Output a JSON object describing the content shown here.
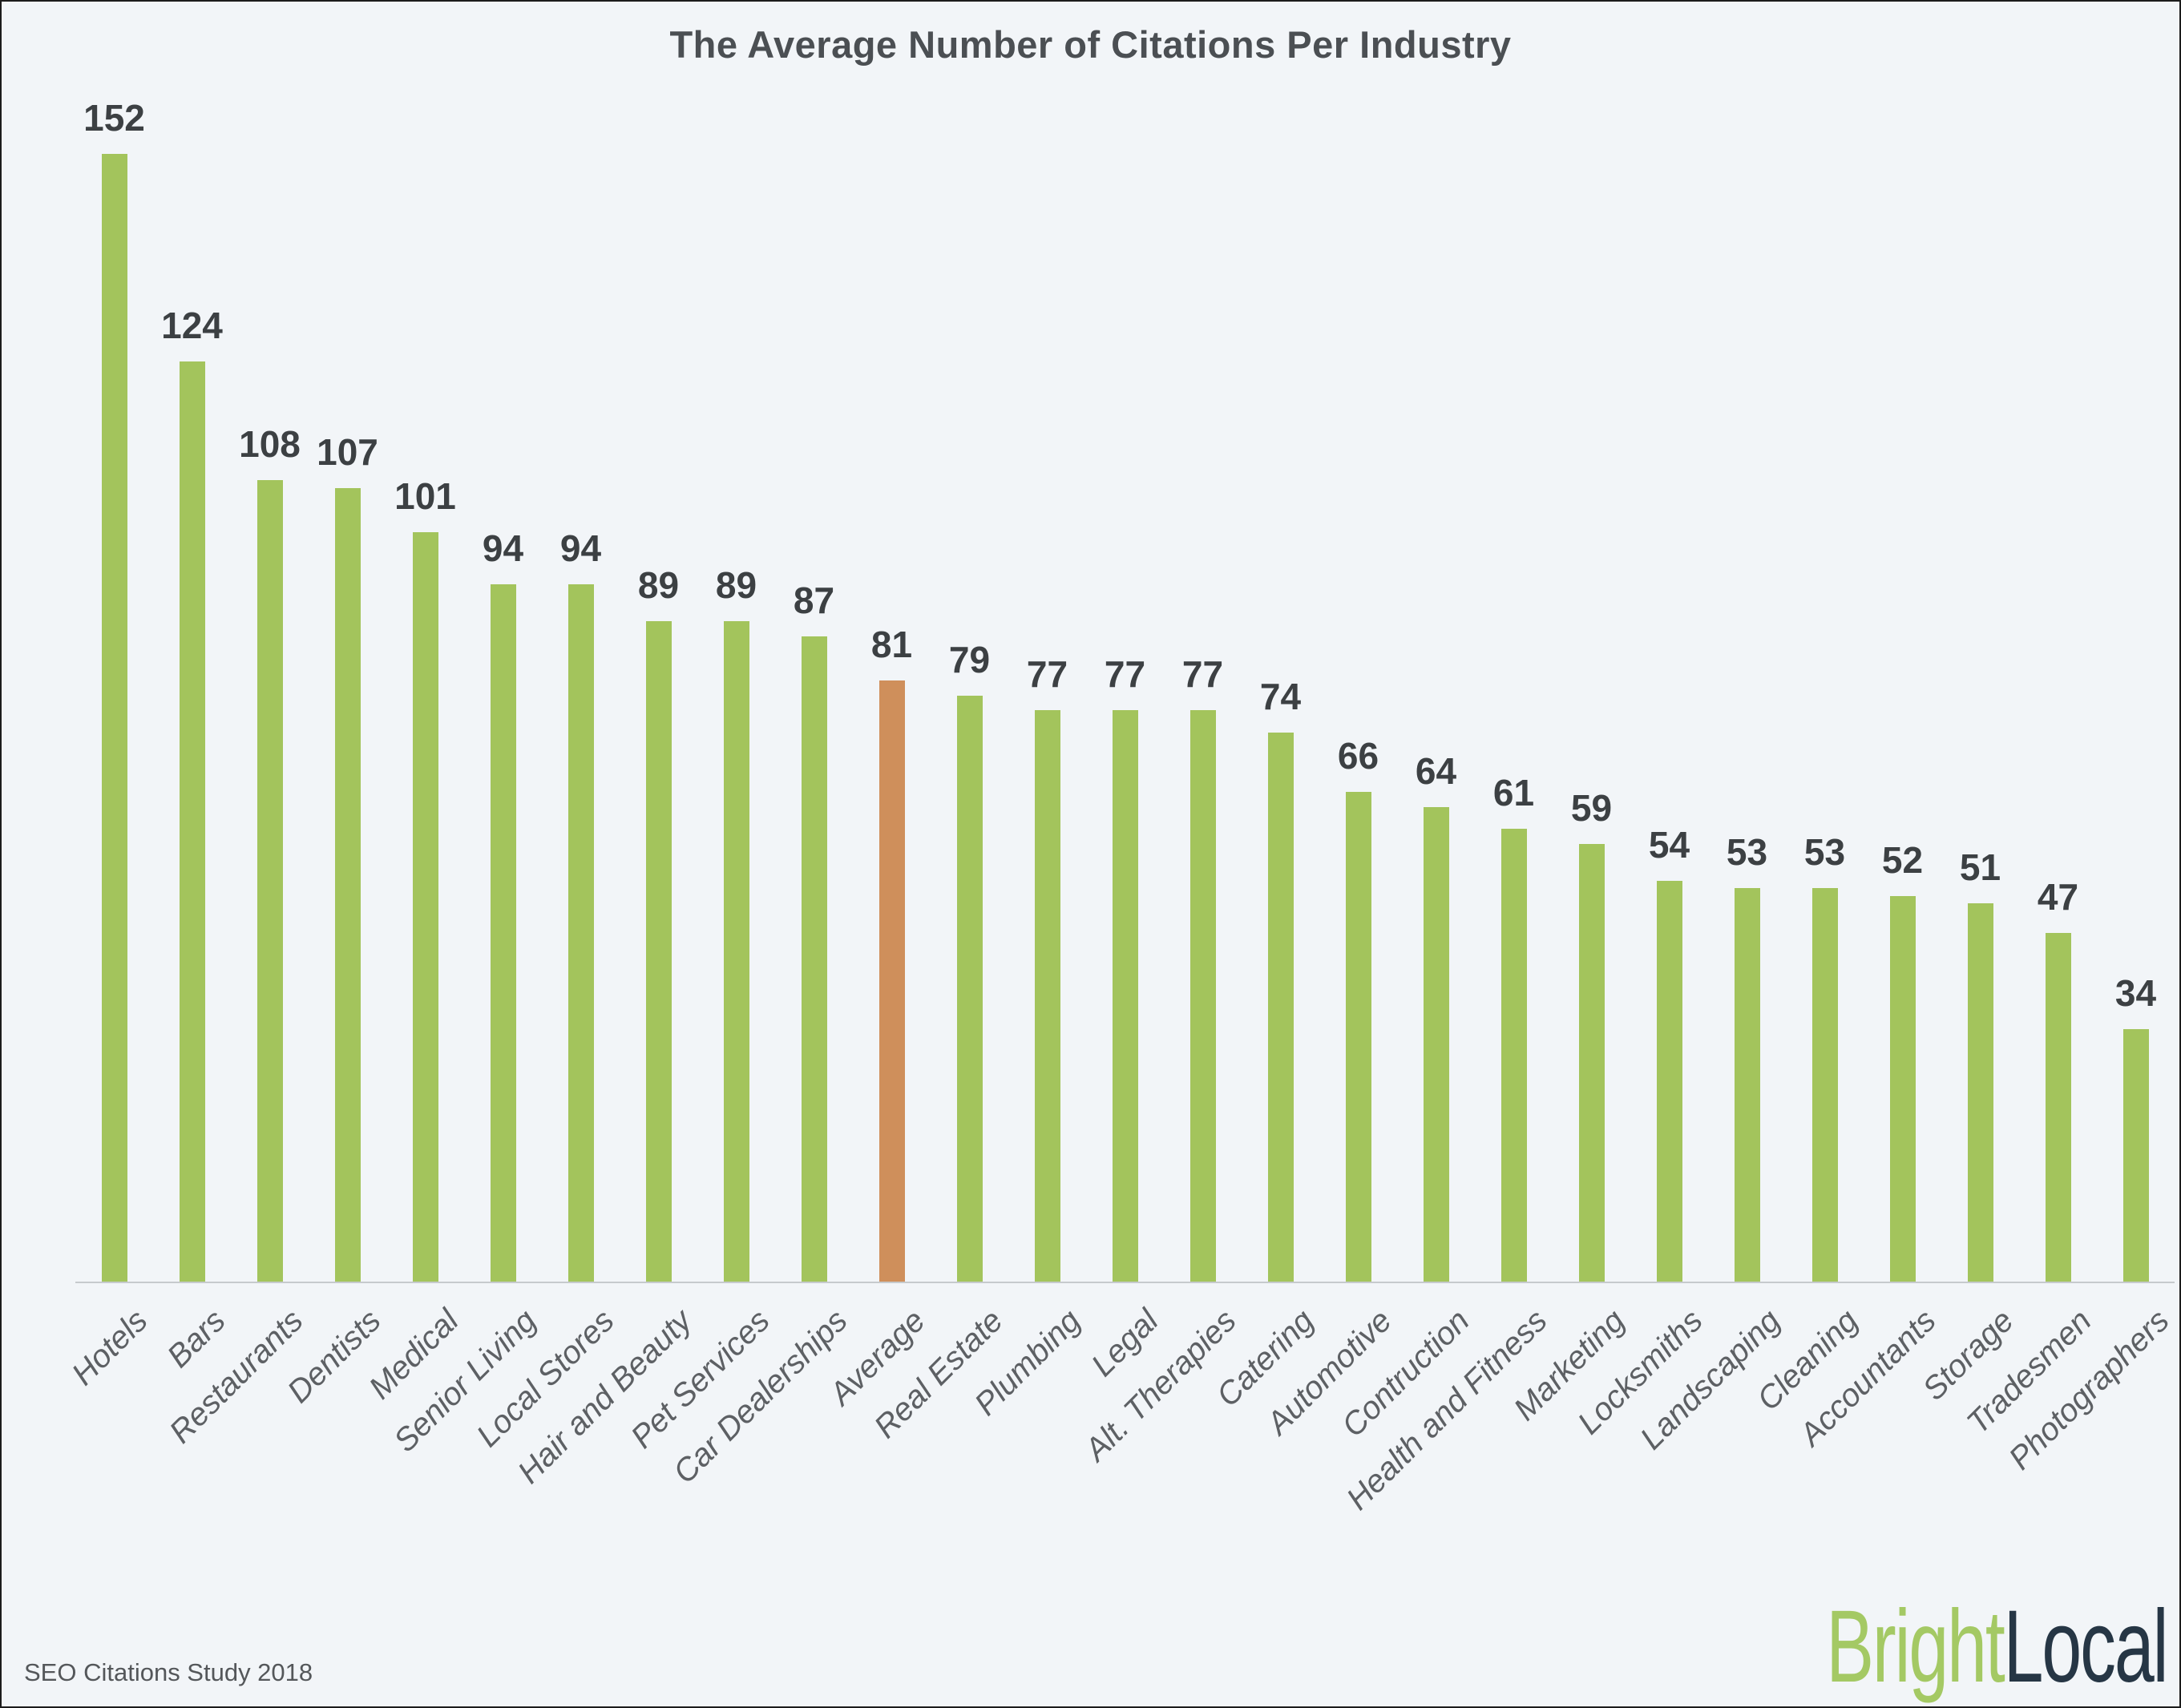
{
  "page": {
    "title": "The Average Number of Citations Per Industry",
    "footer": "SEO Citations Study 2018",
    "logo": {
      "bright": "Bright",
      "local": "Local"
    }
  },
  "colors": {
    "background": "#f2f5f8",
    "frame_border": "#1c1c1c",
    "bar_green": "#a3c45c",
    "bar_orange": "#cf8f5b",
    "title_text": "#4b4f53",
    "value_text": "#3c4043",
    "axis_label_text": "#5d6064",
    "baseline": "#c6cacd",
    "footer_text": "#54575a",
    "logo_green": "#a4c964",
    "logo_dark": "#263645"
  },
  "chart_data": {
    "type": "bar",
    "title": "The Average Number of Citations Per Industry",
    "categories": [
      "Hotels",
      "Bars",
      "Restaurants",
      "Dentists",
      "Medical",
      "Senior Living",
      "Local Stores",
      "Hair and Beauty",
      "Pet Services",
      "Car Dealerships",
      "Average",
      "Real Estate",
      "Plumbing",
      "Legal",
      "Alt. Therapies",
      "Catering",
      "Automotive",
      "Contruction",
      "Health and Fitness",
      "Marketing",
      "Locksmiths",
      "Landscaping",
      "Cleaning",
      "Accountants",
      "Storage",
      "Tradesmen",
      "Photographers"
    ],
    "values": [
      152,
      124,
      108,
      107,
      101,
      94,
      94,
      89,
      89,
      87,
      81,
      79,
      77,
      77,
      77,
      74,
      66,
      64,
      61,
      59,
      54,
      53,
      53,
      52,
      51,
      47,
      34
    ],
    "bar_color": "#a3c45c",
    "highlight": {
      "category": "Average",
      "index": 10,
      "color": "#cf8f5b"
    },
    "value_labels": true,
    "grid": false,
    "legend": false,
    "xlabel": "",
    "ylabel": "",
    "ylim": [
      0,
      160
    ],
    "x_tick_rotation": 45,
    "source": "SEO Citations Study 2018"
  }
}
